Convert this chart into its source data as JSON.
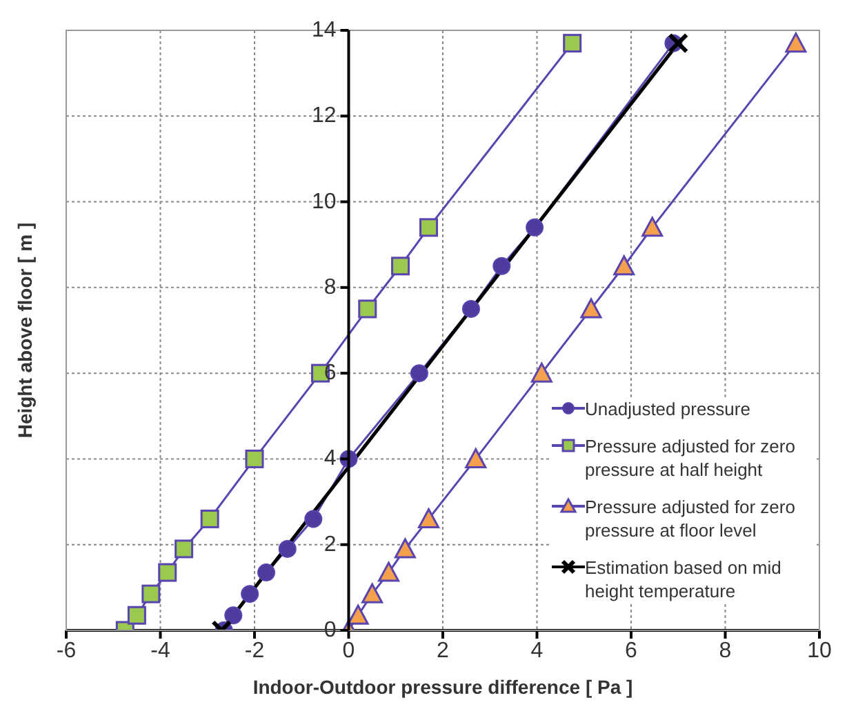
{
  "chart_data": {
    "type": "line",
    "xlabel": "Indoor-Outdoor pressure difference  [ Pa ]",
    "ylabel": "Height above floor  [ m ]",
    "xlim": [
      -6,
      10
    ],
    "xticks": [
      -6,
      -4,
      -2,
      0,
      2,
      4,
      6,
      8,
      10
    ],
    "ylim": [
      0,
      14
    ],
    "yticks": [
      0,
      2,
      4,
      6,
      8,
      10,
      12,
      14
    ],
    "grid": true,
    "legend": "bottom right",
    "line_style": "solid",
    "series": [
      {
        "name": "Unadjusted pressure",
        "color": "#4f3b9e",
        "marker": "circle",
        "x": [
          -2.65,
          -2.45,
          -2.1,
          -1.75,
          -1.3,
          -0.75,
          0,
          1.5,
          2.6,
          3.25,
          3.95,
          6.9
        ],
        "values": [
          0,
          0.35,
          0.85,
          1.35,
          1.9,
          2.6,
          4,
          6,
          7.5,
          8.5,
          9.4,
          13.7
        ]
      },
      {
        "name": "Pressure adjusted for zero pressure at half height",
        "color": "#9bc94f",
        "marker": "square",
        "x": [
          -4.75,
          -4.5,
          -4.2,
          -3.85,
          -3.5,
          -2.95,
          -2.0,
          -0.6,
          0.4,
          1.1,
          1.7,
          4.75
        ],
        "values": [
          0,
          0.35,
          0.85,
          1.35,
          1.9,
          2.6,
          4,
          6,
          7.5,
          8.5,
          9.4,
          13.7
        ]
      },
      {
        "name": "Pressure adjusted for zero pressure at floor level",
        "color": "#f5a04d",
        "marker": "triangle",
        "x": [
          0,
          0.2,
          0.5,
          0.85,
          1.2,
          1.7,
          2.7,
          4.1,
          5.15,
          5.85,
          6.45,
          9.5
        ],
        "values": [
          0,
          0.35,
          0.85,
          1.35,
          1.9,
          2.6,
          4,
          6,
          7.5,
          8.5,
          9.4,
          13.7
        ]
      },
      {
        "name": "Estimation based on mid height temperature",
        "color": "#000000",
        "marker": "cross",
        "x": [
          -2.7,
          7
        ],
        "values": [
          0,
          13.7
        ]
      }
    ]
  }
}
